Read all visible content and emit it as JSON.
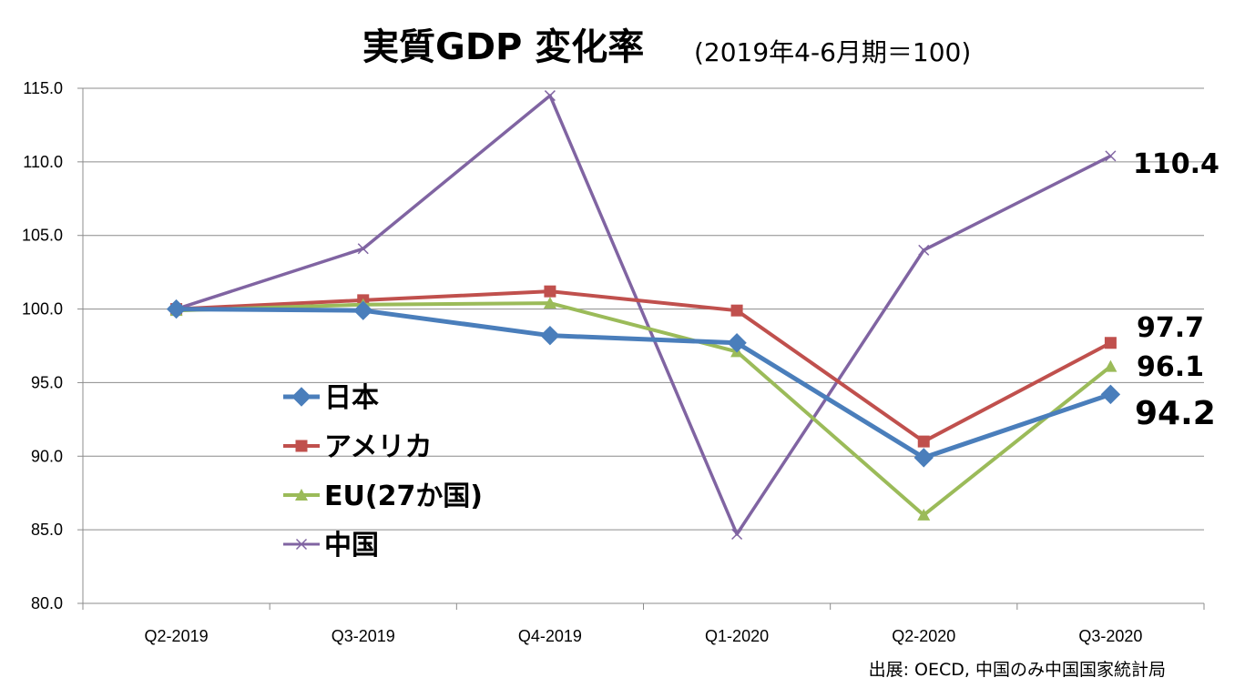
{
  "chart_data": {
    "type": "line",
    "title": "実質GDP 変化率",
    "subtitle": "(2019年4-6月期＝100)",
    "categories": [
      "Q2-2019",
      "Q3-2019",
      "Q4-2019",
      "Q1-2020",
      "Q2-2020",
      "Q3-2020"
    ],
    "ylim": [
      80,
      115
    ],
    "yticks": [
      "80.0",
      "85.0",
      "90.0",
      "95.0",
      "100.0",
      "105.0",
      "110.0",
      "115.0"
    ],
    "grid": true,
    "legend_position": "left-center",
    "series": [
      {
        "name": "日本",
        "color": "#4A7EBB",
        "marker": "diamond",
        "values": [
          100.0,
          99.9,
          98.2,
          97.7,
          89.9,
          94.2
        ],
        "end_label": "94.2"
      },
      {
        "name": "アメリカ",
        "color": "#C0504D",
        "marker": "square",
        "values": [
          100.0,
          100.6,
          101.2,
          99.9,
          91.0,
          97.7
        ],
        "end_label": "97.7"
      },
      {
        "name": "EU(27か国)",
        "color": "#9BBB59",
        "marker": "triangle",
        "values": [
          99.9,
          100.3,
          100.4,
          97.1,
          86.0,
          96.1
        ],
        "end_label": "96.1"
      },
      {
        "name": "中国",
        "color": "#8064A2",
        "marker": "cross",
        "values": [
          100.0,
          104.1,
          114.5,
          84.7,
          104.0,
          110.4
        ],
        "end_label": "110.4"
      }
    ],
    "source": "出展: OECD, 中国のみ中国国家統計局"
  }
}
